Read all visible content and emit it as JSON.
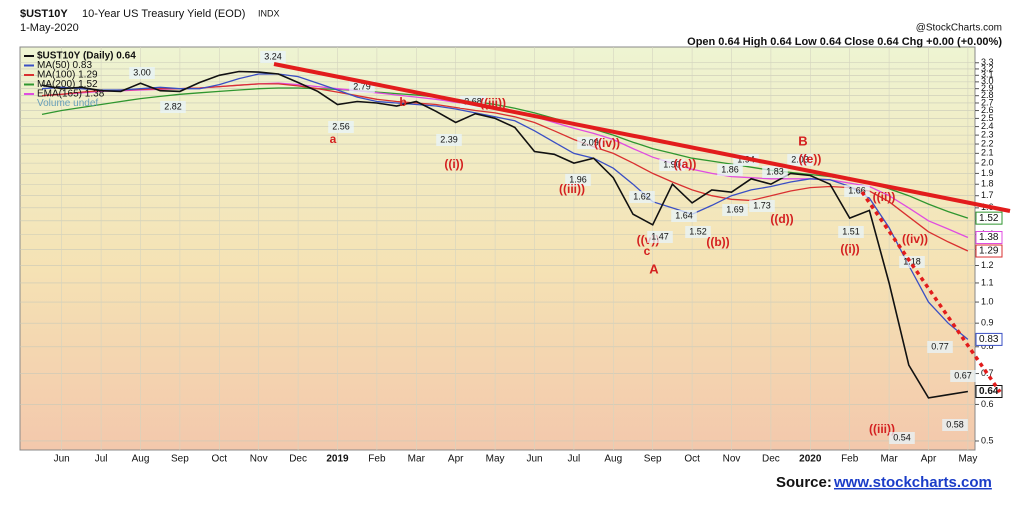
{
  "chart_data": {
    "type": "line",
    "symbol": "$UST10Y",
    "title": "10-Year US Treasury Yield (EOD)",
    "exchange": "INDX",
    "date": "1-May-2020",
    "credit": "@StockCharts.com",
    "quote": "Open 0.64 High 0.64 Low 0.64 Close 0.64 Chg +0.00 (+0.00%)",
    "volume_label": "Volume undef",
    "source_label": "Source:",
    "source_link": "www.stockcharts.com",
    "log_scale": true,
    "grid": true,
    "legend": "top-left",
    "categories": [
      null,
      "Jun",
      null,
      "Jul",
      null,
      "Aug",
      null,
      "Sep",
      null,
      "Oct",
      null,
      "Nov",
      null,
      "Dec",
      null,
      "2019",
      null,
      "Feb",
      null,
      "Mar",
      null,
      "Apr",
      null,
      "May",
      null,
      "Jun",
      null,
      "Jul",
      null,
      "Aug",
      null,
      "Sep",
      null,
      "Oct",
      null,
      "Nov",
      null,
      "Dec",
      null,
      "2020",
      null,
      "Feb",
      null,
      "Mar",
      null,
      "Apr",
      null,
      "May"
    ],
    "series": [
      {
        "name": "$UST10Y (Daily) 0.64",
        "color": "#111111",
        "values": [
          2.95,
          2.9,
          2.92,
          2.87,
          2.86,
          2.98,
          2.87,
          2.86,
          2.99,
          3.1,
          3.16,
          3.15,
          3.12,
          2.99,
          2.86,
          2.68,
          2.72,
          2.7,
          2.66,
          2.72,
          2.59,
          2.45,
          2.56,
          2.5,
          2.39,
          2.12,
          2.09,
          2.0,
          2.05,
          1.86,
          1.55,
          1.47,
          1.8,
          1.64,
          1.75,
          1.73,
          1.85,
          1.8,
          1.9,
          1.88,
          1.8,
          1.52,
          1.58,
          1.1,
          0.73,
          0.62,
          0.63,
          0.64
        ]
      },
      {
        "name": "MA(50) 0.83",
        "color": "#3a4fc4",
        "values": [
          2.9,
          2.92,
          2.9,
          2.88,
          2.88,
          2.9,
          2.92,
          2.9,
          2.9,
          2.96,
          3.05,
          3.12,
          3.12,
          3.08,
          2.98,
          2.88,
          2.78,
          2.72,
          2.7,
          2.68,
          2.66,
          2.62,
          2.57,
          2.52,
          2.47,
          2.35,
          2.22,
          2.1,
          2.05,
          1.95,
          1.8,
          1.65,
          1.6,
          1.55,
          1.62,
          1.7,
          1.75,
          1.78,
          1.82,
          1.85,
          1.84,
          1.78,
          1.68,
          1.45,
          1.2,
          1.0,
          0.9,
          0.83
        ]
      },
      {
        "name": "MA(100) 1.29",
        "color": "#d93030",
        "values": [
          2.8,
          2.82,
          2.85,
          2.87,
          2.88,
          2.89,
          2.9,
          2.9,
          2.91,
          2.93,
          2.95,
          2.97,
          2.97,
          2.94,
          2.9,
          2.85,
          2.8,
          2.75,
          2.72,
          2.7,
          2.68,
          2.64,
          2.6,
          2.57,
          2.52,
          2.45,
          2.35,
          2.25,
          2.17,
          2.1,
          2.0,
          1.9,
          1.82,
          1.75,
          1.7,
          1.67,
          1.66,
          1.7,
          1.74,
          1.77,
          1.78,
          1.77,
          1.74,
          1.65,
          1.53,
          1.42,
          1.35,
          1.29
        ]
      },
      {
        "name": "MA(200) 1.52",
        "color": "#2f962f",
        "values": [
          2.55,
          2.6,
          2.64,
          2.68,
          2.72,
          2.76,
          2.79,
          2.82,
          2.84,
          2.86,
          2.88,
          2.9,
          2.91,
          2.91,
          2.9,
          2.89,
          2.87,
          2.85,
          2.83,
          2.81,
          2.78,
          2.75,
          2.72,
          2.68,
          2.63,
          2.57,
          2.5,
          2.43,
          2.37,
          2.3,
          2.22,
          2.15,
          2.1,
          2.05,
          2.02,
          1.99,
          1.96,
          1.93,
          1.91,
          1.89,
          1.87,
          1.84,
          1.81,
          1.76,
          1.7,
          1.63,
          1.57,
          1.52
        ]
      },
      {
        "name": "EMA(165) 1.38",
        "color": "#e04ce0",
        "values": [
          2.8,
          2.82,
          2.84,
          2.86,
          2.87,
          2.88,
          2.89,
          2.9,
          2.91,
          2.93,
          2.95,
          2.97,
          2.98,
          2.96,
          2.93,
          2.9,
          2.87,
          2.84,
          2.81,
          2.78,
          2.75,
          2.71,
          2.67,
          2.63,
          2.59,
          2.52,
          2.45,
          2.38,
          2.32,
          2.25,
          2.15,
          2.06,
          2.0,
          1.94,
          1.9,
          1.87,
          1.86,
          1.85,
          1.85,
          1.85,
          1.84,
          1.81,
          1.78,
          1.7,
          1.6,
          1.5,
          1.44,
          1.38
        ]
      }
    ],
    "ylim": [
      0.478,
      3.57
    ],
    "yticks": [
      0.5,
      0.6,
      0.7,
      0.8,
      0.9,
      {
        "value": 1,
        "label": "1.0"
      },
      1.1,
      1.2,
      1.3,
      1.4,
      1.5,
      1.6,
      1.7,
      1.8,
      1.9,
      {
        "value": 2,
        "label": "2.0"
      },
      2.1,
      2.2,
      2.3,
      2.4,
      2.5,
      2.6,
      2.7,
      2.8,
      2.9,
      {
        "value": 3,
        "label": "3.0"
      },
      3.1,
      3.2,
      3.3
    ],
    "annotations": [
      {
        "text": "3.24",
        "color": "#111111"
      },
      {
        "text": "3.00",
        "color": "#111111"
      },
      {
        "text": "2.82",
        "color": "#111111"
      },
      {
        "text": "2.79",
        "color": "#111111"
      },
      {
        "text": "2.56",
        "color": "#111111"
      },
      {
        "text": "a",
        "color": "#d42020"
      },
      {
        "text": "b",
        "color": "#d42020"
      },
      {
        "text": "2.68",
        "color": "#111111"
      },
      {
        "text": "((iii))",
        "color": "#d42020"
      },
      {
        "text": "2.39",
        "color": "#111111"
      },
      {
        "text": "((i))",
        "color": "#d42020"
      },
      {
        "text": "1.96",
        "color": "#111111"
      },
      {
        "text": "((iii))",
        "color": "#d42020"
      },
      {
        "text": "2.09",
        "color": "#111111"
      },
      {
        "text": "((iv))",
        "color": "#d42020"
      },
      {
        "text": "1.62",
        "color": "#111111"
      },
      {
        "text": "((v))",
        "color": "#d42020"
      },
      {
        "text": "1.47",
        "color": "#111111"
      },
      {
        "text": "c",
        "color": "#d42020"
      },
      {
        "text": "A",
        "color": "#d42020"
      },
      {
        "text": "1.90",
        "color": "#111111"
      },
      {
        "text": "((a))",
        "color": "#d42020"
      },
      {
        "text": "1.64",
        "color": "#111111"
      },
      {
        "text": "1.52",
        "color": "#111111"
      },
      {
        "text": "((b))",
        "color": "#d42020"
      },
      {
        "text": "1.86",
        "color": "#111111"
      },
      {
        "text": "1.94",
        "color": "#111111"
      },
      {
        "text": "1.69",
        "color": "#111111"
      },
      {
        "text": "1.73",
        "color": "#111111"
      },
      {
        "text": "((d))",
        "color": "#d42020"
      },
      {
        "text": "1.83",
        "color": "#111111"
      },
      {
        "text": "B",
        "color": "#d42020"
      },
      {
        "text": "2.03",
        "color": "#111111"
      },
      {
        "text": "((e))",
        "color": "#d42020"
      },
      {
        "text": "1.66",
        "color": "#111111"
      },
      {
        "text": "((ii))",
        "color": "#d42020"
      },
      {
        "text": "1.51",
        "color": "#111111"
      },
      {
        "text": "((i))",
        "color": "#d42020"
      },
      {
        "text": "((iv))",
        "color": "#d42020"
      },
      {
        "text": "1.18",
        "color": "#111111"
      },
      {
        "text": "0.77",
        "color": "#111111"
      },
      {
        "text": "0.67",
        "color": "#111111"
      },
      {
        "text": "0.58",
        "color": "#111111"
      },
      {
        "text": "((iii))",
        "color": "#d42020"
      },
      {
        "text": "0.54",
        "color": "#111111"
      }
    ]
  }
}
